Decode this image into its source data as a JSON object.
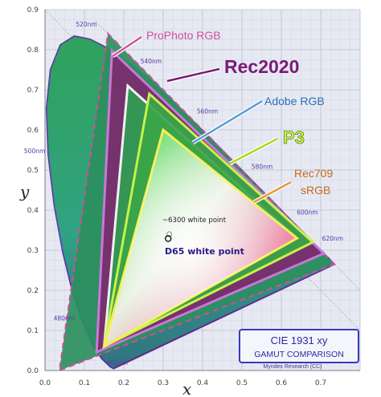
{
  "chart_data": {
    "type": "scatter",
    "title": "",
    "xlabel": "x",
    "ylabel": "y",
    "xlim": [
      0,
      0.8
    ],
    "ylim": [
      0,
      0.9
    ],
    "x_ticks": [
      "0.0",
      "0.1",
      "0.2",
      "0.3",
      "0.4",
      "0.5",
      "0.6",
      "0.7"
    ],
    "y_ticks": [
      "0.0",
      "0.1",
      "0.2",
      "0.3",
      "0.4",
      "0.5",
      "0.6",
      "0.7",
      "0.8",
      "0.9"
    ],
    "grid": true,
    "spectral_locus": [
      [
        0.1741,
        0.005
      ],
      [
        0.1666,
        0.0089
      ],
      [
        0.144,
        0.0297
      ],
      [
        0.1241,
        0.0578
      ],
      [
        0.0913,
        0.1327
      ],
      [
        0.0687,
        0.2007
      ],
      [
        0.0454,
        0.295
      ],
      [
        0.0235,
        0.4127
      ],
      [
        0.0082,
        0.5384
      ],
      [
        0.0039,
        0.6548
      ],
      [
        0.0139,
        0.7502
      ],
      [
        0.0389,
        0.812
      ],
      [
        0.0743,
        0.8338
      ],
      [
        0.1142,
        0.8262
      ],
      [
        0.1547,
        0.8059
      ],
      [
        0.1929,
        0.7816
      ],
      [
        0.2296,
        0.7543
      ],
      [
        0.2658,
        0.7243
      ],
      [
        0.3016,
        0.6923
      ],
      [
        0.3373,
        0.6589
      ],
      [
        0.3731,
        0.6245
      ],
      [
        0.4087,
        0.5896
      ],
      [
        0.4441,
        0.5547
      ],
      [
        0.4788,
        0.5202
      ],
      [
        0.5125,
        0.4866
      ],
      [
        0.5448,
        0.4544
      ],
      [
        0.5752,
        0.4242
      ],
      [
        0.6029,
        0.3965
      ],
      [
        0.627,
        0.3725
      ],
      [
        0.6482,
        0.3514
      ],
      [
        0.6658,
        0.334
      ],
      [
        0.6801,
        0.3197
      ],
      [
        0.6915,
        0.3083
      ],
      [
        0.7006,
        0.2993
      ],
      [
        0.7079,
        0.292
      ],
      [
        0.7347,
        0.2653
      ]
    ],
    "wavelength_labels": [
      {
        "label": "460nm",
        "x": 0.144,
        "y": 0.03
      },
      {
        "label": "480nm",
        "x": 0.091,
        "y": 0.133
      },
      {
        "label": "500nm",
        "x": 0.008,
        "y": 0.538
      },
      {
        "label": "520nm",
        "x": 0.074,
        "y": 0.834
      },
      {
        "label": "540nm",
        "x": 0.23,
        "y": 0.754
      },
      {
        "label": "560nm",
        "x": 0.373,
        "y": 0.625
      },
      {
        "label": "580nm",
        "x": 0.512,
        "y": 0.487
      },
      {
        "label": "600nm",
        "x": 0.627,
        "y": 0.373
      },
      {
        "label": "620nm",
        "x": 0.691,
        "y": 0.308
      }
    ],
    "series": [
      {
        "name": "ProPhoto RGB",
        "points": [
          [
            0.7347,
            0.2653
          ],
          [
            0.1596,
            0.8404
          ],
          [
            0.0366,
            0.0001
          ]
        ],
        "color": "#d54d9a"
      },
      {
        "name": "Rec2020",
        "points": [
          [
            0.708,
            0.292
          ],
          [
            0.17,
            0.797
          ],
          [
            0.131,
            0.046
          ]
        ],
        "color": "#7a1a74"
      },
      {
        "name": "Adobe RGB",
        "points": [
          [
            0.64,
            0.33
          ],
          [
            0.21,
            0.71
          ],
          [
            0.15,
            0.06
          ]
        ],
        "color": "#5b9bd5"
      },
      {
        "name": "P3",
        "points": [
          [
            0.68,
            0.32
          ],
          [
            0.265,
            0.69
          ],
          [
            0.15,
            0.06
          ]
        ],
        "color": "#a8d820"
      },
      {
        "name": "Rec709 sRGB",
        "points": [
          [
            0.64,
            0.33
          ],
          [
            0.3,
            0.6
          ],
          [
            0.15,
            0.06
          ]
        ],
        "color": "#f2e64a"
      }
    ],
    "white_points": [
      {
        "label": "~6300 white point",
        "x": 0.3155,
        "y": 0.34
      },
      {
        "label": "D65 white point",
        "x": 0.3127,
        "y": 0.329
      }
    ],
    "callouts": [
      {
        "text": "ProPhoto RGB",
        "color": "#d54d9a"
      },
      {
        "text": "Rec2020",
        "color": "#7a1a74"
      },
      {
        "text": "Adobe RGB",
        "color": "#2e6fb7"
      },
      {
        "text": "P3",
        "color": "#a8d820"
      },
      {
        "text": "Rec709",
        "color": "#c46a1e"
      },
      {
        "text": "sRGB",
        "color": "#c46a1e"
      }
    ],
    "info_box": {
      "line1": "CIE 1931 xy",
      "line2": "GAMUT COMPARISON",
      "credit": "Myndex Research (CC)"
    }
  }
}
